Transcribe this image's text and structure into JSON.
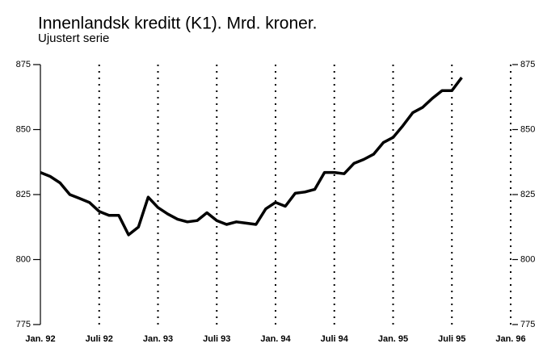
{
  "chart_data": {
    "type": "line",
    "title": "Innenlandsk kreditt (K1). Mrd. kroner.",
    "subtitle": "Ujustert serie",
    "categories": [
      "Jan. 92",
      null,
      null,
      null,
      null,
      null,
      "Juli 92",
      null,
      null,
      null,
      null,
      null,
      "Jan. 93",
      null,
      null,
      null,
      null,
      null,
      "Juli 93",
      null,
      null,
      null,
      null,
      null,
      "Jan. 94",
      null,
      null,
      null,
      null,
      null,
      "Juli 94",
      null,
      null,
      null,
      null,
      null,
      "Jan. 95",
      null,
      null,
      null,
      null,
      null,
      "Juli 95",
      null,
      null,
      null,
      null,
      null,
      "Jan. 96"
    ],
    "series": [
      {
        "name": null,
        "color": "#000000",
        "values": [
          833.5,
          832,
          829.5,
          825,
          823.5,
          822,
          818.5,
          817,
          817,
          809.5,
          812.5,
          824,
          820,
          817.5,
          815.5,
          814.5,
          815,
          818,
          815,
          813.5,
          814.5,
          814,
          813.5,
          819.5,
          822,
          820.5,
          825.5,
          826,
          827,
          833.5,
          833.5,
          833,
          837,
          838.5,
          840.5,
          845,
          847,
          851.5,
          856.5,
          858.5,
          862,
          865,
          865,
          870,
          null,
          null,
          null,
          null,
          null
        ]
      }
    ],
    "ylim": [
      775,
      875
    ],
    "yticks": [
      775,
      800,
      825,
      850,
      875
    ],
    "grid": true
  }
}
